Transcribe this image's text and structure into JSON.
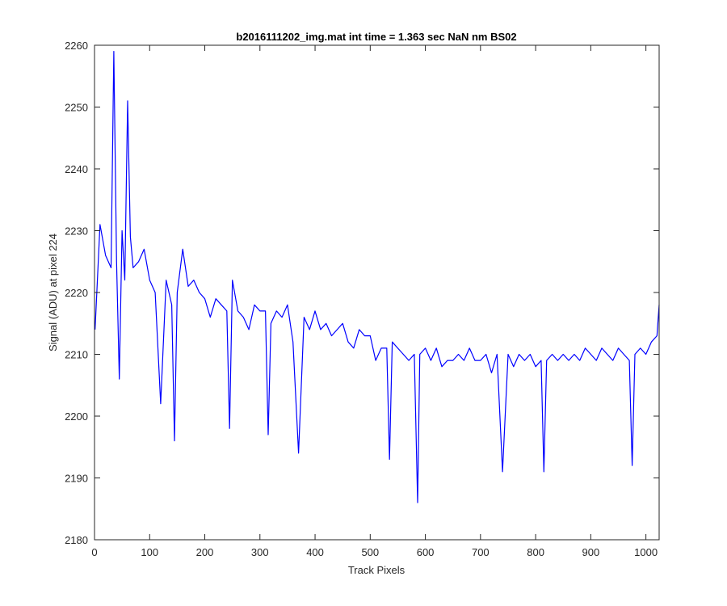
{
  "chart_data": {
    "type": "line",
    "title": "b2016111202_img.mat int time = 1.363 sec  NaN nm BS02",
    "xlabel": "Track Pixels",
    "ylabel": "Signal (ADU) at pixel 224",
    "xlim": [
      0,
      1024
    ],
    "ylim": [
      2180,
      2260
    ],
    "xticks": [
      0,
      100,
      200,
      300,
      400,
      500,
      600,
      700,
      800,
      900,
      1000
    ],
    "yticks": [
      2180,
      2190,
      2200,
      2210,
      2220,
      2230,
      2240,
      2250,
      2260
    ],
    "grid": false,
    "legend": "none",
    "line_color": "#0000ff",
    "series": [
      {
        "x": [
          1,
          10,
          20,
          30,
          35,
          40,
          45,
          50,
          55,
          60,
          65,
          70,
          80,
          90,
          100,
          110,
          120,
          130,
          140,
          145,
          150,
          160,
          170,
          180,
          190,
          200,
          210,
          220,
          230,
          240,
          245,
          250,
          260,
          270,
          280,
          290,
          300,
          310,
          315,
          320,
          330,
          340,
          350,
          360,
          370,
          380,
          390,
          400,
          410,
          420,
          430,
          440,
          450,
          460,
          470,
          480,
          490,
          500,
          510,
          520,
          530,
          535,
          540,
          550,
          560,
          570,
          580,
          586,
          590,
          600,
          610,
          620,
          630,
          640,
          650,
          660,
          670,
          680,
          690,
          700,
          710,
          720,
          730,
          740,
          750,
          760,
          770,
          780,
          790,
          800,
          810,
          815,
          820,
          830,
          840,
          850,
          860,
          870,
          880,
          890,
          900,
          910,
          920,
          930,
          940,
          950,
          960,
          970,
          975,
          980,
          990,
          1000,
          1010,
          1020,
          1024
        ],
        "y": [
          2214,
          2231,
          2226,
          2224,
          2259,
          2225,
          2206,
          2230,
          2222,
          2251,
          2229,
          2224,
          2225,
          2227,
          2222,
          2220,
          2202,
          2222,
          2218,
          2196,
          2220,
          2227,
          2221,
          2222,
          2220,
          2219,
          2216,
          2219,
          2218,
          2217,
          2198,
          2222,
          2217,
          2216,
          2214,
          2218,
          2217,
          2217,
          2197,
          2215,
          2217,
          2216,
          2218,
          2212,
          2194,
          2216,
          2214,
          2217,
          2214,
          2215,
          2213,
          2214,
          2215,
          2212,
          2211,
          2214,
          2213,
          2213,
          2209,
          2211,
          2211,
          2193,
          2212,
          2211,
          2210,
          2209,
          2210,
          2186,
          2210,
          2211,
          2209,
          2211,
          2208,
          2209,
          2209,
          2210,
          2209,
          2211,
          2209,
          2209,
          2210,
          2207,
          2210,
          2191,
          2210,
          2208,
          2210,
          2209,
          2210,
          2208,
          2209,
          2191,
          2209,
          2210,
          2209,
          2210,
          2209,
          2210,
          2209,
          2211,
          2210,
          2209,
          2211,
          2210,
          2209,
          2211,
          2210,
          2209,
          2192,
          2210,
          2211,
          2210,
          2212,
          2213,
          2218
        ]
      }
    ]
  }
}
